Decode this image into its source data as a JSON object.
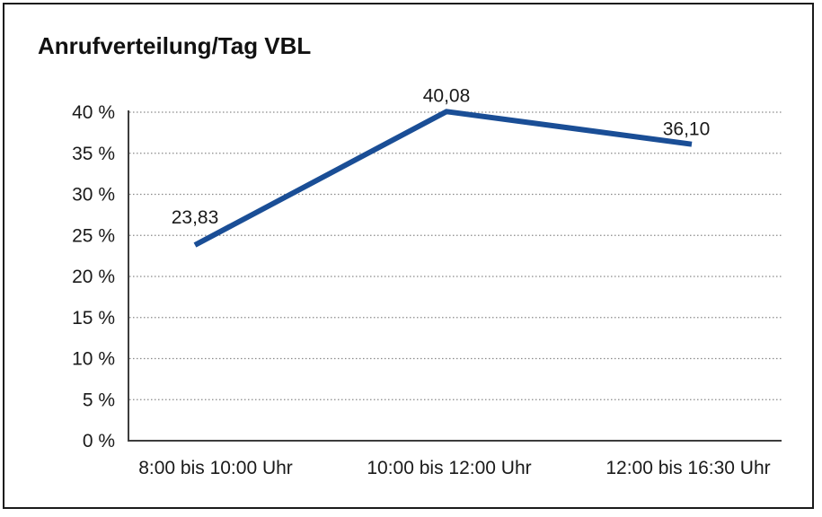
{
  "chart_data": {
    "type": "line",
    "title": "Anrufverteilung/Tag VBL",
    "categories": [
      "8:00 bis 10:00 Uhr",
      "10:00 bis 12:00 Uhr",
      "12:00 bis 16:30 Uhr"
    ],
    "values": [
      23.83,
      40.08,
      36.1
    ],
    "data_labels": [
      "23,83",
      "40,08",
      "36,10"
    ],
    "xlabel": "",
    "ylabel": "",
    "ylim": [
      0,
      40
    ],
    "ytick_step": 5,
    "ytick_labels": [
      "0 %",
      "5 %",
      "10 %",
      "15 %",
      "20 %",
      "25 %",
      "30 %",
      "35 %",
      "40 %"
    ],
    "grid": "horizontal-dotted",
    "legend": "none",
    "line_color": "#1a4e96",
    "axis_color": "#3d3d3d",
    "grid_color": "#8a8a8a",
    "text_color": "#1a1a1a",
    "title_color": "#111111",
    "background_color": "#ffffff",
    "frame_color": "#1a1a1a"
  }
}
